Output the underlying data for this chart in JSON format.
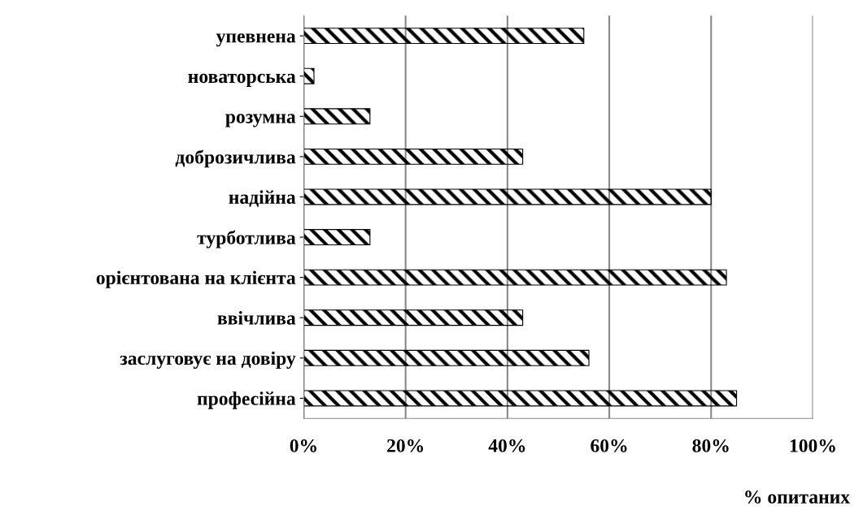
{
  "chart_data": {
    "type": "bar",
    "orientation": "horizontal",
    "categories": [
      "упевнена",
      "новаторська",
      "розумна",
      "доброзичлива",
      "надійна",
      "турботлива",
      "орієнтована на клієнта",
      "ввічлива",
      "заслуговує на довіру",
      "професійна"
    ],
    "values": [
      55,
      2,
      13,
      43,
      80,
      13,
      83,
      43,
      56,
      85
    ],
    "color": "#000000",
    "xlim": [
      0,
      100
    ],
    "xticks": [
      {
        "value": 0,
        "label": "0%"
      },
      {
        "value": 20,
        "label": "20%"
      },
      {
        "value": 40,
        "label": "40%"
      },
      {
        "value": 60,
        "label": "60%"
      },
      {
        "value": 80,
        "label": "80%"
      },
      {
        "value": 100,
        "label": "100%"
      }
    ],
    "xlabel": "% опитаних",
    "grid": "x"
  }
}
